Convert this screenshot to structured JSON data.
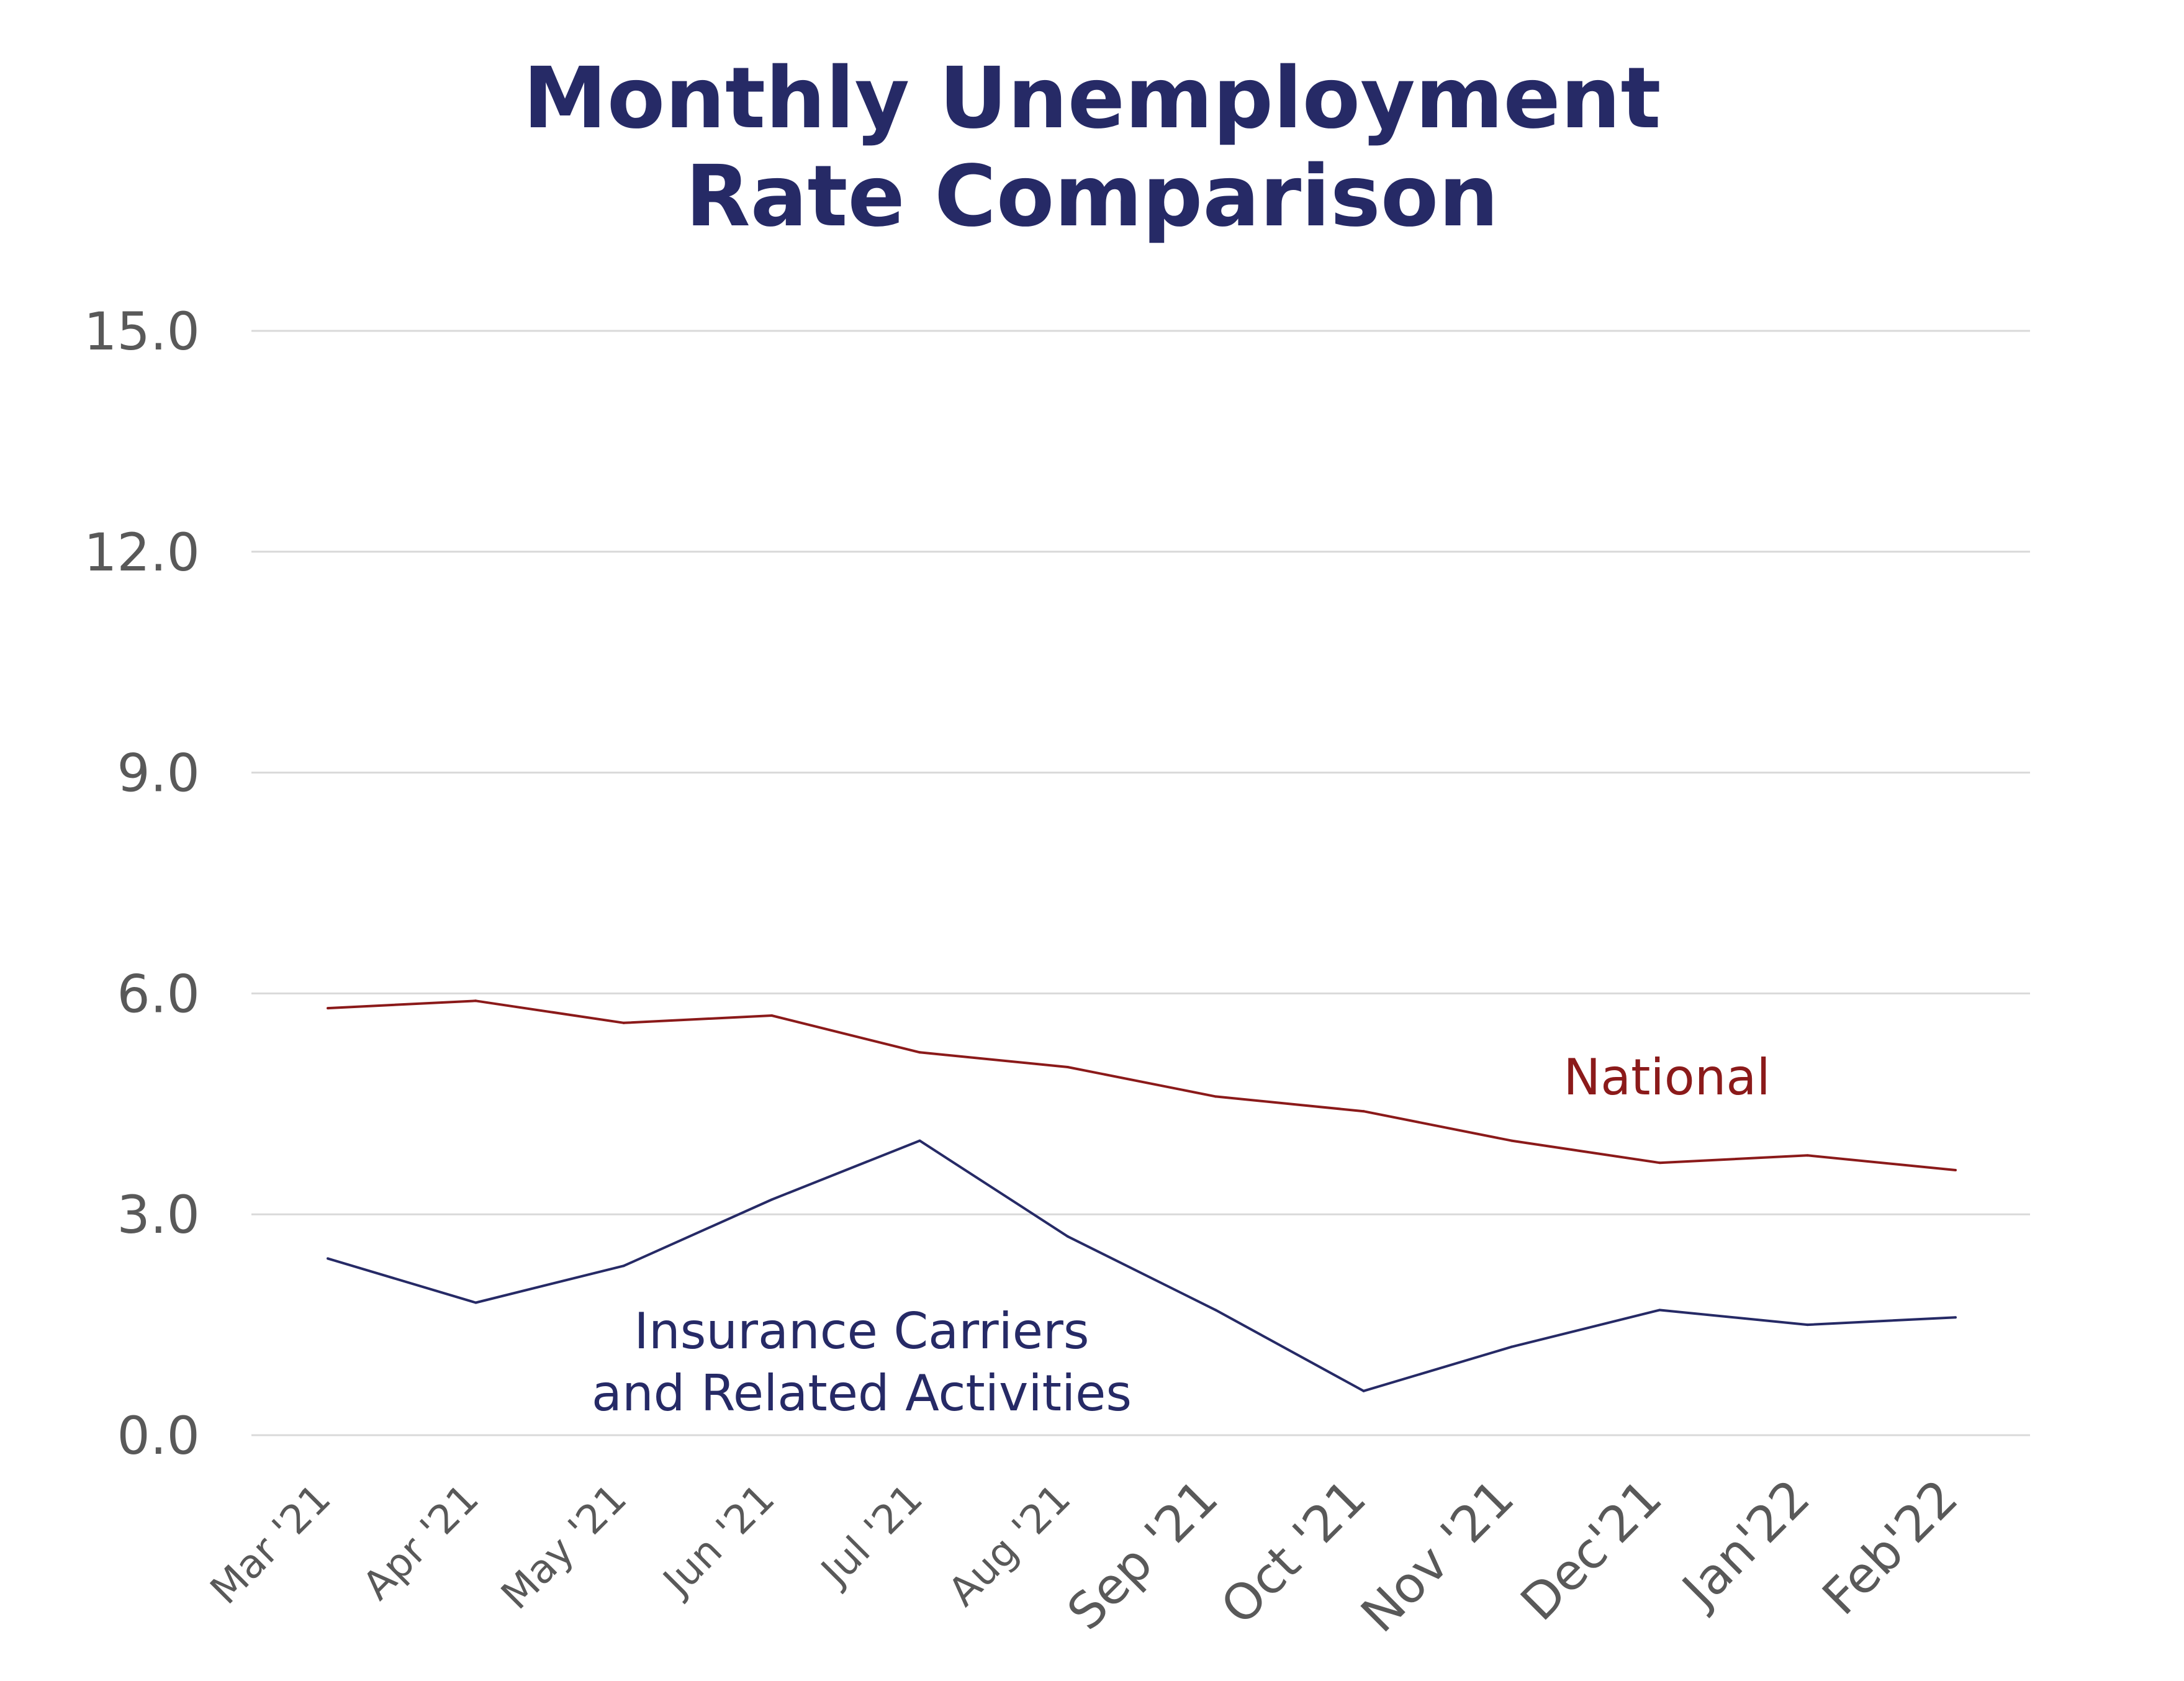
{
  "chart_data": {
    "type": "line",
    "title": [
      "Monthly Unemployment",
      "Rate Comparison"
    ],
    "xlabel": "",
    "ylabel": "",
    "categories": [
      "Mar '21",
      "Apr '21",
      "May '21",
      "Jun '21",
      "Jul '21",
      "Aug '21",
      "Sep '21",
      "Oct '21",
      "Nov '21",
      "Dec'21",
      "Jan'22",
      "Feb'22"
    ],
    "ylim": [
      0,
      15
    ],
    "yticks": [
      "0.0",
      "3.0",
      "6.0",
      "9.0",
      "12.0",
      "15.0"
    ],
    "grid": true,
    "legend": "inline labels",
    "series": [
      {
        "name": "National",
        "color": "#8b1a1a",
        "values": [
          5.8,
          5.9,
          5.6,
          5.7,
          5.2,
          5.0,
          4.6,
          4.4,
          4.0,
          3.7,
          3.8,
          3.6
        ]
      },
      {
        "name": "Insurance Carriers and Related Activities",
        "label_lines": [
          "Insurance Carriers",
          "and Related Activities"
        ],
        "color": "#262a66",
        "values": [
          2.4,
          1.8,
          2.3,
          3.2,
          4.0,
          2.7,
          1.7,
          0.6,
          1.2,
          1.7,
          1.5,
          1.6
        ]
      }
    ]
  },
  "colors": {
    "title": "#262a66",
    "gridline": "#d9d9d9",
    "tick_text": "#595959"
  }
}
